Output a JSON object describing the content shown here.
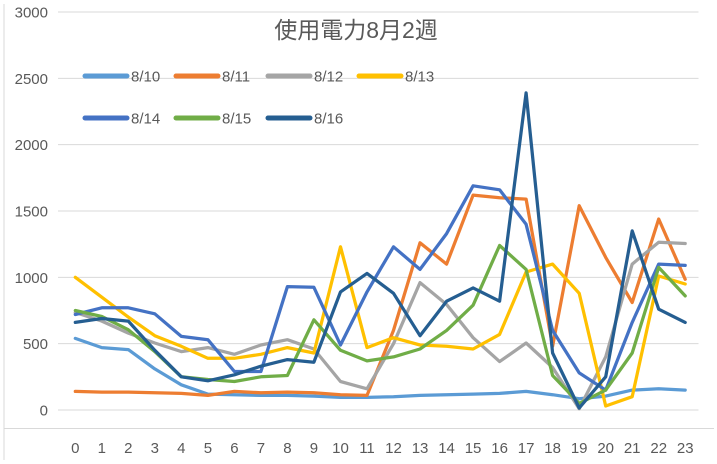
{
  "chart_data": {
    "type": "line",
    "title": "使用電力8月2週",
    "xlabel": "",
    "ylabel": "",
    "x_labels": [
      "0",
      "1",
      "2",
      "3",
      "4",
      "5",
      "6",
      "7",
      "8",
      "9",
      "10",
      "11",
      "12",
      "13",
      "14",
      "15",
      "16",
      "17",
      "18",
      "19",
      "20",
      "21",
      "22",
      "23"
    ],
    "ylim": [
      0,
      3000
    ],
    "y_ticks": [
      0,
      500,
      1000,
      1500,
      2000,
      2500,
      3000
    ],
    "grid": "horizontal-only",
    "gridline_color": "#d9d9d9",
    "axis_text_color": "#595959",
    "title_color": "#595959",
    "legend_position": "top-left-inside",
    "legend_rows": [
      [
        "8/10",
        "8/11",
        "8/12",
        "8/13"
      ],
      [
        "8/14",
        "8/15",
        "8/16"
      ]
    ],
    "series": [
      {
        "name": "8/10",
        "color": "#5B9BD5",
        "values": [
          540,
          470,
          455,
          310,
          190,
          120,
          115,
          110,
          110,
          105,
          95,
          95,
          100,
          110,
          115,
          120,
          125,
          140,
          115,
          85,
          105,
          150,
          160,
          150
        ]
      },
      {
        "name": "8/11",
        "color": "#ED7D31",
        "values": [
          140,
          135,
          135,
          130,
          125,
          110,
          140,
          130,
          135,
          130,
          115,
          110,
          600,
          1260,
          1100,
          1620,
          1600,
          1590,
          480,
          1540,
          1150,
          810,
          1440,
          985
        ]
      },
      {
        "name": "8/12",
        "color": "#A5A5A5",
        "values": [
          735,
          670,
          580,
          505,
          440,
          470,
          420,
          490,
          530,
          460,
          215,
          160,
          500,
          960,
          795,
          545,
          365,
          505,
          320,
          10,
          400,
          1100,
          1265,
          1255
        ]
      },
      {
        "name": "8/13",
        "color": "#FFC000",
        "values": [
          1000,
          850,
          700,
          560,
          480,
          390,
          390,
          420,
          470,
          430,
          1230,
          470,
          545,
          490,
          480,
          460,
          570,
          1040,
          1100,
          880,
          30,
          100,
          1010,
          950
        ]
      },
      {
        "name": "8/14",
        "color": "#4472C4",
        "values": [
          720,
          770,
          770,
          725,
          555,
          530,
          290,
          290,
          930,
          925,
          490,
          890,
          1230,
          1060,
          1330,
          1690,
          1660,
          1400,
          600,
          280,
          150,
          660,
          1100,
          1090
        ]
      },
      {
        "name": "8/15",
        "color": "#70AD47",
        "values": [
          750,
          705,
          605,
          440,
          250,
          230,
          215,
          250,
          260,
          680,
          450,
          370,
          400,
          460,
          600,
          790,
          1240,
          1060,
          260,
          50,
          150,
          430,
          1075,
          860
        ]
      },
      {
        "name": "8/16",
        "color": "#255E91",
        "values": [
          660,
          690,
          670,
          450,
          250,
          220,
          265,
          330,
          380,
          360,
          890,
          1030,
          880,
          560,
          820,
          920,
          820,
          2390,
          430,
          15,
          250,
          1350,
          760,
          660
        ]
      }
    ]
  }
}
